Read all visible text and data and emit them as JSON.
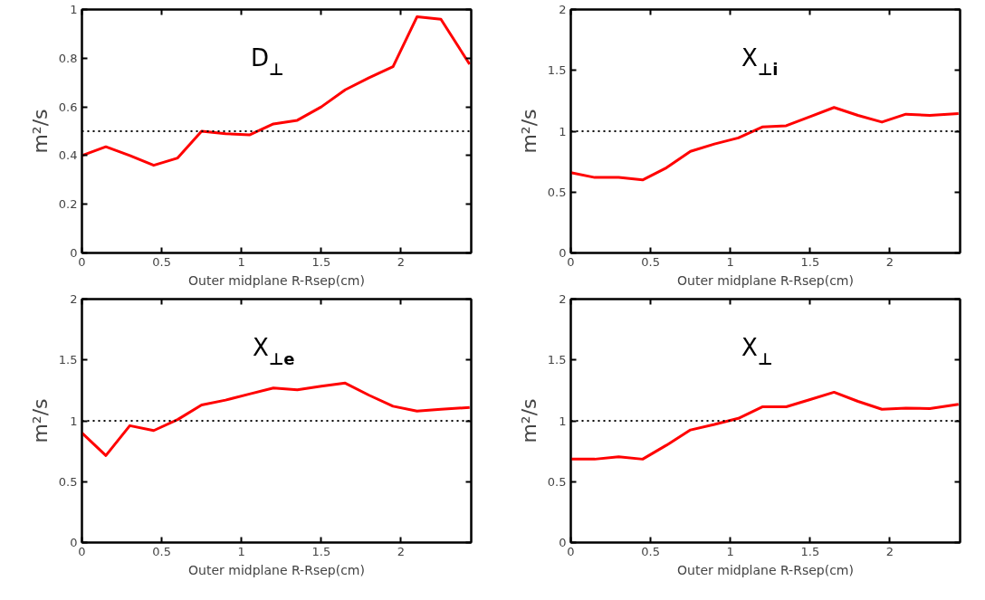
{
  "chart_data": [
    {
      "type": "line",
      "title": "D$_{⊥}$",
      "xlabel": "Outer midplane R-Rsep(cm)",
      "ylabel": "m²/s",
      "x": [
        0,
        0.15,
        0.3,
        0.45,
        0.6,
        0.75,
        0.9,
        1.05,
        1.2,
        1.35,
        1.5,
        1.65,
        1.8,
        1.95,
        2.1,
        2.25,
        2.43
      ],
      "series": [
        {
          "color": "#ff0000",
          "values": [
            0.4,
            0.436,
            0.4,
            0.36,
            0.39,
            0.5,
            0.49,
            0.485,
            0.53,
            0.545,
            0.6,
            0.67,
            0.72,
            0.765,
            0.97,
            0.96,
            0.775
          ]
        }
      ],
      "xlim": [
        0,
        2.44
      ],
      "ylim": [
        0,
        1
      ],
      "xticks": [
        0,
        0.5,
        1,
        1.5,
        2
      ],
      "yticks": [
        0,
        0.2,
        0.4,
        0.6,
        0.8,
        1
      ],
      "grid": false,
      "marker": "none",
      "line_style": "solid",
      "ref_lines": [
        {
          "axis": "y",
          "value": 0.5,
          "color": "#000000",
          "line_style": "dotted"
        }
      ]
    },
    {
      "type": "line",
      "title": "X$_{⊥i}$",
      "xlabel": "Outer midplane R-Rsep(cm)",
      "ylabel": "m²/s",
      "x": [
        0,
        0.15,
        0.3,
        0.45,
        0.6,
        0.75,
        0.9,
        1.05,
        1.2,
        1.35,
        1.5,
        1.65,
        1.8,
        1.95,
        2.1,
        2.25,
        2.43
      ],
      "series": [
        {
          "color": "#ff0000",
          "values": [
            0.66,
            0.62,
            0.62,
            0.6,
            0.7,
            0.835,
            0.895,
            0.945,
            1.035,
            1.045,
            1.12,
            1.195,
            1.13,
            1.075,
            1.14,
            1.13,
            1.145
          ]
        }
      ],
      "xlim": [
        0,
        2.44
      ],
      "ylim": [
        0,
        2
      ],
      "xticks": [
        0,
        0.5,
        1,
        1.5,
        2
      ],
      "yticks": [
        0,
        0.5,
        1,
        1.5,
        2
      ],
      "grid": false,
      "marker": "none",
      "line_style": "solid",
      "ref_lines": [
        {
          "axis": "y",
          "value": 1,
          "color": "#000000",
          "line_style": "dotted"
        }
      ]
    },
    {
      "type": "line",
      "title": "X$_{⊥e}$",
      "xlabel": "Outer midplane R-Rsep(cm)",
      "ylabel": "m²/s",
      "x": [
        0,
        0.15,
        0.3,
        0.45,
        0.6,
        0.75,
        0.9,
        1.05,
        1.2,
        1.35,
        1.5,
        1.65,
        1.8,
        1.95,
        2.1,
        2.25,
        2.43
      ],
      "series": [
        {
          "color": "#ff0000",
          "values": [
            0.9,
            0.715,
            0.96,
            0.92,
            1.01,
            1.13,
            1.17,
            1.22,
            1.27,
            1.255,
            1.285,
            1.31,
            1.21,
            1.12,
            1.08,
            1.095,
            1.11
          ]
        }
      ],
      "xlim": [
        0,
        2.44
      ],
      "ylim": [
        0,
        2
      ],
      "xticks": [
        0,
        0.5,
        1,
        1.5,
        2
      ],
      "yticks": [
        0,
        0.5,
        1,
        1.5,
        2
      ],
      "grid": false,
      "marker": "none",
      "line_style": "solid",
      "ref_lines": [
        {
          "axis": "y",
          "value": 1,
          "color": "#000000",
          "line_style": "dotted"
        }
      ]
    },
    {
      "type": "line",
      "title": "X$_{⊥}$",
      "xlabel": "Outer midplane R-Rsep(cm)",
      "ylabel": "m²/s",
      "x": [
        0,
        0.15,
        0.3,
        0.45,
        0.6,
        0.75,
        0.9,
        1.05,
        1.2,
        1.35,
        1.5,
        1.65,
        1.8,
        1.95,
        2.1,
        2.25,
        2.43
      ],
      "series": [
        {
          "color": "#ff0000",
          "values": [
            0.685,
            0.685,
            0.705,
            0.685,
            0.8,
            0.925,
            0.97,
            1.02,
            1.115,
            1.115,
            1.175,
            1.235,
            1.16,
            1.095,
            1.105,
            1.1,
            1.135
          ]
        }
      ],
      "xlim": [
        0,
        2.44
      ],
      "ylim": [
        0,
        2
      ],
      "xticks": [
        0,
        0.5,
        1,
        1.5,
        2
      ],
      "yticks": [
        0,
        0.5,
        1,
        1.5,
        2
      ],
      "grid": false,
      "marker": "none",
      "line_style": "solid",
      "ref_lines": [
        {
          "axis": "y",
          "value": 1,
          "color": "#000000",
          "line_style": "dotted"
        }
      ]
    }
  ]
}
